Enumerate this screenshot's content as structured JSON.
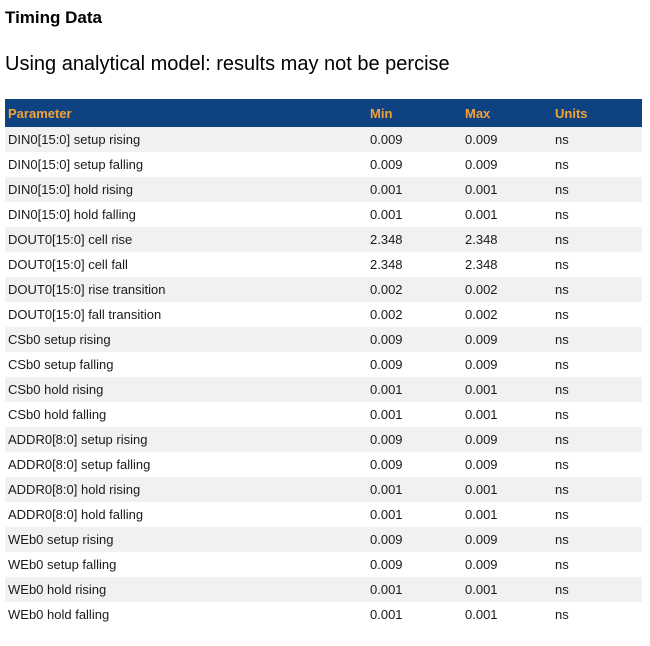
{
  "page": {
    "title": "Timing Data",
    "subtitle": "Using analytical model: results may not be percise"
  },
  "table": {
    "columns": [
      "Parameter",
      "Min",
      "Max",
      "Units"
    ],
    "rows": [
      {
        "parameter": "DIN0[15:0] setup rising",
        "min": "0.009",
        "max": "0.009",
        "units": "ns"
      },
      {
        "parameter": "DIN0[15:0] setup falling",
        "min": "0.009",
        "max": "0.009",
        "units": "ns"
      },
      {
        "parameter": "DIN0[15:0] hold rising",
        "min": "0.001",
        "max": "0.001",
        "units": "ns"
      },
      {
        "parameter": "DIN0[15:0] hold falling",
        "min": "0.001",
        "max": "0.001",
        "units": "ns"
      },
      {
        "parameter": "DOUT0[15:0] cell rise",
        "min": "2.348",
        "max": "2.348",
        "units": "ns"
      },
      {
        "parameter": "DOUT0[15:0] cell fall",
        "min": "2.348",
        "max": "2.348",
        "units": "ns"
      },
      {
        "parameter": "DOUT0[15:0] rise transition",
        "min": "0.002",
        "max": "0.002",
        "units": "ns"
      },
      {
        "parameter": "DOUT0[15:0] fall transition",
        "min": "0.002",
        "max": "0.002",
        "units": "ns"
      },
      {
        "parameter": "CSb0 setup rising",
        "min": "0.009",
        "max": "0.009",
        "units": "ns"
      },
      {
        "parameter": "CSb0 setup falling",
        "min": "0.009",
        "max": "0.009",
        "units": "ns"
      },
      {
        "parameter": "CSb0 hold rising",
        "min": "0.001",
        "max": "0.001",
        "units": "ns"
      },
      {
        "parameter": "CSb0 hold falling",
        "min": "0.001",
        "max": "0.001",
        "units": "ns"
      },
      {
        "parameter": "ADDR0[8:0] setup rising",
        "min": "0.009",
        "max": "0.009",
        "units": "ns"
      },
      {
        "parameter": "ADDR0[8:0] setup falling",
        "min": "0.009",
        "max": "0.009",
        "units": "ns"
      },
      {
        "parameter": "ADDR0[8:0] hold rising",
        "min": "0.001",
        "max": "0.001",
        "units": "ns"
      },
      {
        "parameter": "ADDR0[8:0] hold falling",
        "min": "0.001",
        "max": "0.001",
        "units": "ns"
      },
      {
        "parameter": "WEb0 setup rising",
        "min": "0.009",
        "max": "0.009",
        "units": "ns"
      },
      {
        "parameter": "WEb0 setup falling",
        "min": "0.009",
        "max": "0.009",
        "units": "ns"
      },
      {
        "parameter": "WEb0 hold rising",
        "min": "0.001",
        "max": "0.001",
        "units": "ns"
      },
      {
        "parameter": "WEb0 hold falling",
        "min": "0.001",
        "max": "0.001",
        "units": "ns"
      }
    ]
  },
  "colors": {
    "header_bg": "#0f4281",
    "header_text": "#f2a338",
    "row_alt_bg": "#f0f1f1"
  }
}
